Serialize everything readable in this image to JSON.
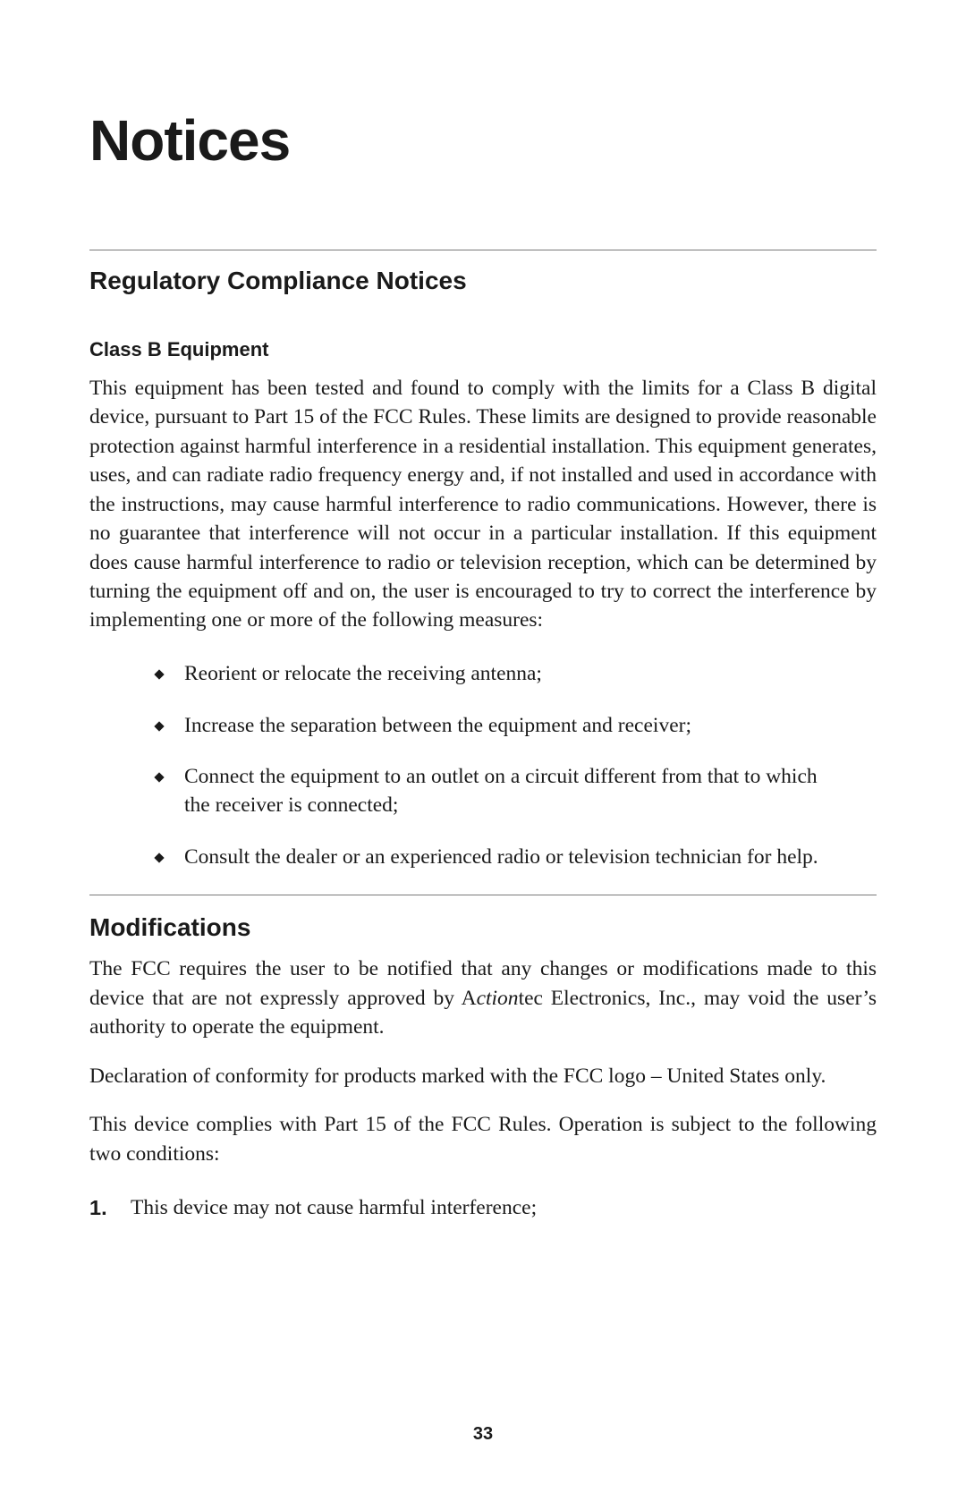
{
  "page": {
    "number": "33",
    "title": "Notices",
    "background_color": "#ffffff",
    "text_color": "#1a1a1a",
    "rule_color": "#7a7a7a"
  },
  "typography": {
    "title_fontsize_pt": 48,
    "section_heading_fontsize_pt": 21,
    "subheading_fontsize_pt": 16,
    "body_fontsize_pt": 17,
    "pagenum_fontsize_pt": 15,
    "heading_font": "Myriad Pro / sans-serif",
    "body_font": "Minion Pro / serif"
  },
  "sections": [
    {
      "heading": "Regulatory Compliance Notices",
      "subheading": "Class B Equipment",
      "body": "This equipment has been tested and found to comply with the limits for a Class B digital device, pursuant to Part 15 of the FCC Rules. These limits are designed to provide reasonable protection against harmful interference in a residential installa­tion. This equipment generates, uses, and can radiate radio frequency energy and, if not installed and used in accordance with the instructions, may cause harmful interference to radio communications. However, there is no guarantee that inter­ference will not occur in a particular installation. If this equipment does cause harmful interference to radio or television reception, which can be determined by turning the equipment off and on, the user is encouraged to try to correct the interference by implementing one or more of the following measures:",
      "bullets": [
        "Reorient or relocate the receiving antenna;",
        "Increase the separation between the equipment and receiver;",
        "Connect the equipment to an outlet on a circuit different from that to which the receiver is connected;",
        "Consult the dealer or an experienced radio or television technician for help."
      ]
    },
    {
      "heading": "Modifications",
      "paragraphs": {
        "p1_pre": "The FCC requires the user to be notified that any changes or modifications made to this device that are not expressly approved by ",
        "brand_A": "A",
        "brand_ction": "ction",
        "brand_tec": "tec Electronics, Inc.",
        "p1_post": ", may void the user’s authority to operate the equipment.",
        "p2": "Declaration of conformity for products marked with the FCC logo – United States only.",
        "p3": "This device complies with Part 15 of the FCC Rules. Operation is subject to the fol­lowing two conditions:"
      },
      "ordered": [
        {
          "num": "1.",
          "text": "This device may not cause harmful interference;"
        }
      ]
    }
  ]
}
